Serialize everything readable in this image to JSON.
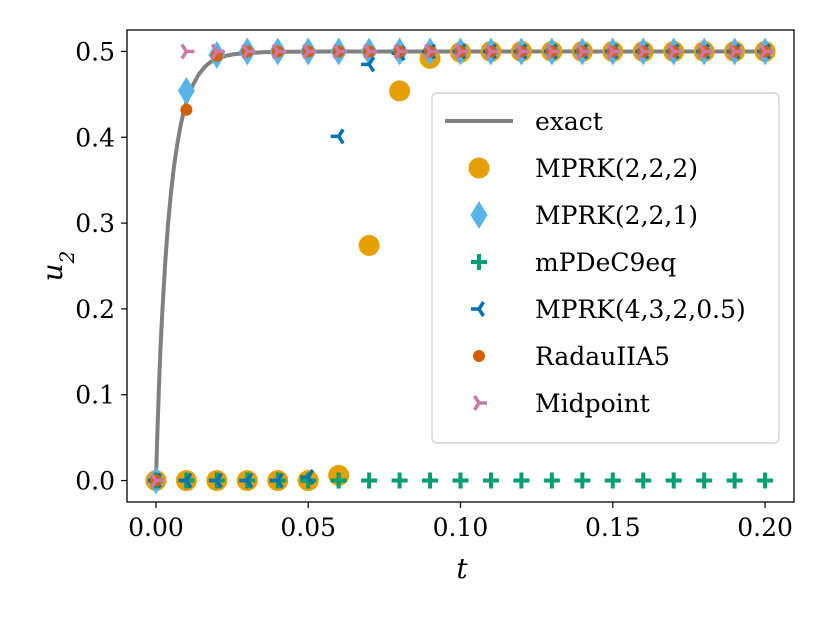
{
  "chart_data": {
    "type": "scatter",
    "title": "",
    "xlabel": "t",
    "ylabel": "u",
    "ylabel_subscript": "2",
    "xlim": [
      -0.0095,
      0.2095
    ],
    "ylim": [
      -0.025,
      0.525
    ],
    "xticks": [
      0.0,
      0.05,
      0.1,
      0.15,
      0.2
    ],
    "xtick_labels": [
      "0.00",
      "0.05",
      "0.10",
      "0.15",
      "0.20"
    ],
    "yticks": [
      0.0,
      0.1,
      0.2,
      0.3,
      0.4,
      0.5
    ],
    "ytick_labels": [
      "0.0",
      "0.1",
      "0.2",
      "0.3",
      "0.4",
      "0.5"
    ],
    "grid": false,
    "legend_position": "right",
    "exact": {
      "name": "exact",
      "color": "#808080",
      "t": [
        0,
        0.0005,
        0.001,
        0.0015,
        0.002,
        0.003,
        0.004,
        0.005,
        0.006,
        0.007,
        0.008,
        0.009,
        0.01,
        0.012,
        0.014,
        0.016,
        0.018,
        0.02,
        0.023,
        0.026,
        0.03,
        0.035,
        0.04,
        0.05,
        0.06,
        0.08,
        0.1,
        0.15,
        0.2
      ],
      "u": [
        0.0,
        0.06,
        0.11,
        0.155,
        0.19,
        0.252,
        0.3,
        0.338,
        0.368,
        0.392,
        0.412,
        0.428,
        0.441,
        0.46,
        0.473,
        0.482,
        0.488,
        0.491,
        0.495,
        0.497,
        0.498,
        0.499,
        0.4995,
        0.4998,
        0.4999,
        0.5,
        0.5,
        0.5,
        0.5
      ]
    },
    "series": [
      {
        "name": "MPRK(2,2,2)",
        "marker": "circle",
        "color": "#E69F00",
        "points": [
          [
            0.0,
            0.0
          ],
          [
            0.01,
            0.0
          ],
          [
            0.02,
            0.0
          ],
          [
            0.03,
            0.0
          ],
          [
            0.04,
            0.0
          ],
          [
            0.05,
            0.0
          ],
          [
            0.06,
            0.006
          ],
          [
            0.07,
            0.274
          ],
          [
            0.08,
            0.454
          ],
          [
            0.09,
            0.492
          ],
          [
            0.1,
            0.499
          ],
          [
            0.11,
            0.5
          ],
          [
            0.12,
            0.5
          ],
          [
            0.13,
            0.5
          ],
          [
            0.14,
            0.5
          ],
          [
            0.15,
            0.5
          ],
          [
            0.16,
            0.5
          ],
          [
            0.17,
            0.5
          ],
          [
            0.18,
            0.5
          ],
          [
            0.19,
            0.5
          ],
          [
            0.2,
            0.5
          ]
        ]
      },
      {
        "name": "MPRK(2,2,1)",
        "marker": "diamond",
        "color": "#56B4E9",
        "points": [
          [
            0.0,
            0.0
          ],
          [
            0.01,
            0.454
          ],
          [
            0.02,
            0.496
          ],
          [
            0.03,
            0.5
          ],
          [
            0.04,
            0.5
          ],
          [
            0.05,
            0.5
          ],
          [
            0.06,
            0.5
          ],
          [
            0.07,
            0.5
          ],
          [
            0.08,
            0.5
          ],
          [
            0.09,
            0.5
          ],
          [
            0.1,
            0.5
          ],
          [
            0.11,
            0.5
          ],
          [
            0.12,
            0.5
          ],
          [
            0.13,
            0.5
          ],
          [
            0.14,
            0.5
          ],
          [
            0.15,
            0.5
          ],
          [
            0.16,
            0.5
          ],
          [
            0.17,
            0.5
          ],
          [
            0.18,
            0.5
          ],
          [
            0.19,
            0.5
          ],
          [
            0.2,
            0.5
          ]
        ]
      },
      {
        "name": "mPDeC9eq",
        "marker": "plus",
        "color": "#009E73",
        "points": [
          [
            0.0,
            0.0
          ],
          [
            0.01,
            0.0
          ],
          [
            0.02,
            0.0
          ],
          [
            0.03,
            0.0
          ],
          [
            0.04,
            0.0
          ],
          [
            0.05,
            0.0
          ],
          [
            0.06,
            0.0
          ],
          [
            0.07,
            0.0
          ],
          [
            0.08,
            0.0
          ],
          [
            0.09,
            0.0
          ],
          [
            0.1,
            0.0
          ],
          [
            0.11,
            0.0
          ],
          [
            0.12,
            0.0
          ],
          [
            0.13,
            0.0
          ],
          [
            0.14,
            0.0
          ],
          [
            0.15,
            0.0
          ],
          [
            0.16,
            0.0
          ],
          [
            0.17,
            0.0
          ],
          [
            0.18,
            0.0
          ],
          [
            0.19,
            0.0
          ],
          [
            0.2,
            0.0
          ]
        ]
      },
      {
        "name": "MPRK(4,3,2,0.5)",
        "marker": "tri_left",
        "color": "#0072B2",
        "points": [
          [
            0.0,
            0.0
          ],
          [
            0.01,
            0.0
          ],
          [
            0.02,
            0.0
          ],
          [
            0.03,
            0.0
          ],
          [
            0.04,
            0.0
          ],
          [
            0.05,
            0.004
          ],
          [
            0.06,
            0.401
          ],
          [
            0.07,
            0.485
          ],
          [
            0.08,
            0.498
          ],
          [
            0.09,
            0.5
          ],
          [
            0.1,
            0.5
          ],
          [
            0.11,
            0.5
          ],
          [
            0.12,
            0.5
          ],
          [
            0.13,
            0.5
          ],
          [
            0.14,
            0.5
          ],
          [
            0.15,
            0.5
          ],
          [
            0.16,
            0.5
          ],
          [
            0.17,
            0.5
          ],
          [
            0.18,
            0.5
          ],
          [
            0.19,
            0.5
          ],
          [
            0.2,
            0.5
          ]
        ]
      },
      {
        "name": "RadauIIA5",
        "marker": "small_circle",
        "color": "#D55E00",
        "points": [
          [
            0.0,
            0.0
          ],
          [
            0.01,
            0.432
          ],
          [
            0.02,
            0.495
          ],
          [
            0.03,
            0.5
          ],
          [
            0.04,
            0.5
          ],
          [
            0.05,
            0.5
          ],
          [
            0.06,
            0.5
          ],
          [
            0.07,
            0.5
          ],
          [
            0.08,
            0.5
          ],
          [
            0.09,
            0.5
          ],
          [
            0.1,
            0.5
          ],
          [
            0.11,
            0.5
          ],
          [
            0.12,
            0.5
          ],
          [
            0.13,
            0.5
          ],
          [
            0.14,
            0.5
          ],
          [
            0.15,
            0.5
          ],
          [
            0.16,
            0.5
          ],
          [
            0.17,
            0.5
          ],
          [
            0.18,
            0.5
          ],
          [
            0.19,
            0.5
          ],
          [
            0.2,
            0.5
          ]
        ]
      },
      {
        "name": "Midpoint",
        "marker": "tri_right",
        "color": "#CC79A7",
        "points": [
          [
            0.0,
            0.0
          ],
          [
            0.01,
            0.5
          ],
          [
            0.02,
            0.5
          ],
          [
            0.03,
            0.5
          ],
          [
            0.04,
            0.5
          ],
          [
            0.05,
            0.5
          ],
          [
            0.06,
            0.5
          ],
          [
            0.07,
            0.5
          ],
          [
            0.08,
            0.5
          ],
          [
            0.09,
            0.5
          ],
          [
            0.1,
            0.5
          ],
          [
            0.11,
            0.5
          ],
          [
            0.12,
            0.5
          ],
          [
            0.13,
            0.5
          ],
          [
            0.14,
            0.5
          ],
          [
            0.15,
            0.5
          ],
          [
            0.16,
            0.5
          ],
          [
            0.17,
            0.5
          ],
          [
            0.18,
            0.5
          ],
          [
            0.19,
            0.5
          ],
          [
            0.2,
            0.5
          ]
        ]
      }
    ]
  }
}
